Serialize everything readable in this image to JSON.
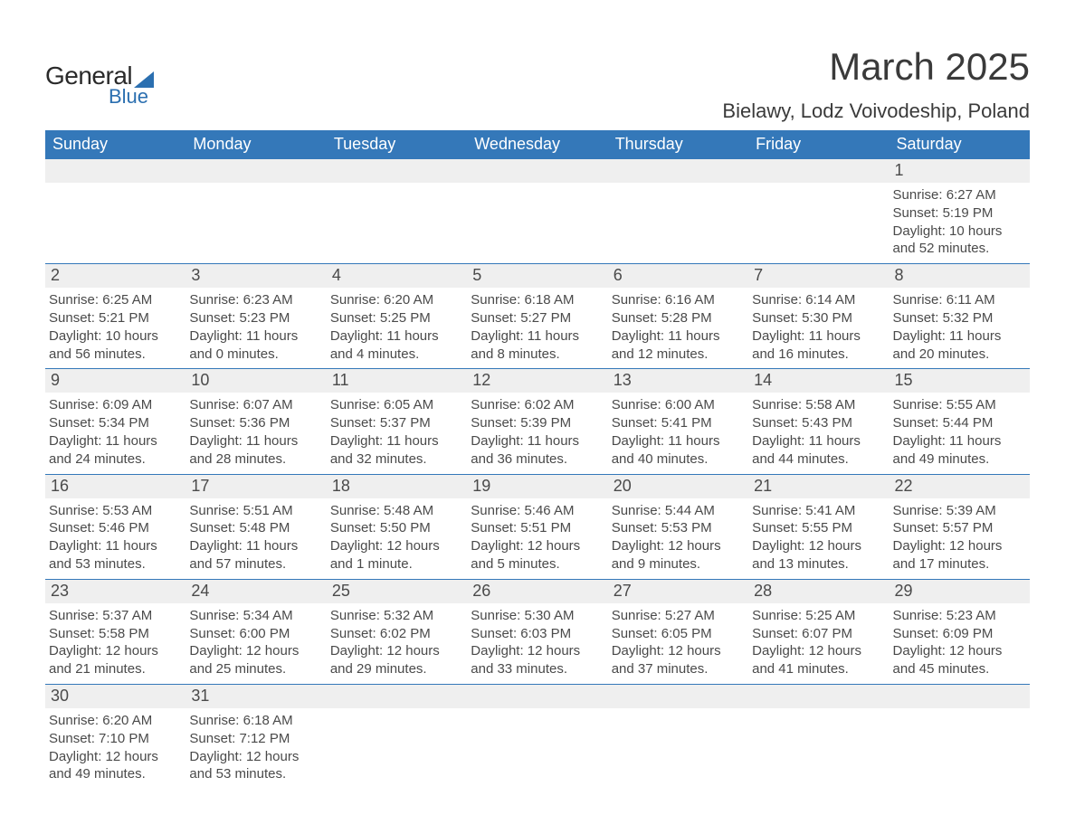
{
  "logo": {
    "part1": "General",
    "part2": "Blue"
  },
  "title": "March 2025",
  "location": "Bielawy, Lodz Voivodeship, Poland",
  "colors": {
    "header_bg": "#3478b9",
    "header_text": "#ffffff",
    "daynum_bg": "#efefef",
    "border": "#3478b9",
    "text": "#4a4a4a",
    "logo_accent": "#2b6fb0"
  },
  "layout": {
    "type": "table",
    "columns": 7,
    "fontsize_title": 42,
    "fontsize_location": 22,
    "fontsize_header": 18,
    "fontsize_daynum": 18,
    "fontsize_body": 15
  },
  "weekdays": [
    "Sunday",
    "Monday",
    "Tuesday",
    "Wednesday",
    "Thursday",
    "Friday",
    "Saturday"
  ],
  "weeks": [
    [
      null,
      null,
      null,
      null,
      null,
      null,
      {
        "d": "1",
        "sr": "Sunrise: 6:27 AM",
        "ss": "Sunset: 5:19 PM",
        "dl1": "Daylight: 10 hours",
        "dl2": "and 52 minutes."
      }
    ],
    [
      {
        "d": "2",
        "sr": "Sunrise: 6:25 AM",
        "ss": "Sunset: 5:21 PM",
        "dl1": "Daylight: 10 hours",
        "dl2": "and 56 minutes."
      },
      {
        "d": "3",
        "sr": "Sunrise: 6:23 AM",
        "ss": "Sunset: 5:23 PM",
        "dl1": "Daylight: 11 hours",
        "dl2": "and 0 minutes."
      },
      {
        "d": "4",
        "sr": "Sunrise: 6:20 AM",
        "ss": "Sunset: 5:25 PM",
        "dl1": "Daylight: 11 hours",
        "dl2": "and 4 minutes."
      },
      {
        "d": "5",
        "sr": "Sunrise: 6:18 AM",
        "ss": "Sunset: 5:27 PM",
        "dl1": "Daylight: 11 hours",
        "dl2": "and 8 minutes."
      },
      {
        "d": "6",
        "sr": "Sunrise: 6:16 AM",
        "ss": "Sunset: 5:28 PM",
        "dl1": "Daylight: 11 hours",
        "dl2": "and 12 minutes."
      },
      {
        "d": "7",
        "sr": "Sunrise: 6:14 AM",
        "ss": "Sunset: 5:30 PM",
        "dl1": "Daylight: 11 hours",
        "dl2": "and 16 minutes."
      },
      {
        "d": "8",
        "sr": "Sunrise: 6:11 AM",
        "ss": "Sunset: 5:32 PM",
        "dl1": "Daylight: 11 hours",
        "dl2": "and 20 minutes."
      }
    ],
    [
      {
        "d": "9",
        "sr": "Sunrise: 6:09 AM",
        "ss": "Sunset: 5:34 PM",
        "dl1": "Daylight: 11 hours",
        "dl2": "and 24 minutes."
      },
      {
        "d": "10",
        "sr": "Sunrise: 6:07 AM",
        "ss": "Sunset: 5:36 PM",
        "dl1": "Daylight: 11 hours",
        "dl2": "and 28 minutes."
      },
      {
        "d": "11",
        "sr": "Sunrise: 6:05 AM",
        "ss": "Sunset: 5:37 PM",
        "dl1": "Daylight: 11 hours",
        "dl2": "and 32 minutes."
      },
      {
        "d": "12",
        "sr": "Sunrise: 6:02 AM",
        "ss": "Sunset: 5:39 PM",
        "dl1": "Daylight: 11 hours",
        "dl2": "and 36 minutes."
      },
      {
        "d": "13",
        "sr": "Sunrise: 6:00 AM",
        "ss": "Sunset: 5:41 PM",
        "dl1": "Daylight: 11 hours",
        "dl2": "and 40 minutes."
      },
      {
        "d": "14",
        "sr": "Sunrise: 5:58 AM",
        "ss": "Sunset: 5:43 PM",
        "dl1": "Daylight: 11 hours",
        "dl2": "and 44 minutes."
      },
      {
        "d": "15",
        "sr": "Sunrise: 5:55 AM",
        "ss": "Sunset: 5:44 PM",
        "dl1": "Daylight: 11 hours",
        "dl2": "and 49 minutes."
      }
    ],
    [
      {
        "d": "16",
        "sr": "Sunrise: 5:53 AM",
        "ss": "Sunset: 5:46 PM",
        "dl1": "Daylight: 11 hours",
        "dl2": "and 53 minutes."
      },
      {
        "d": "17",
        "sr": "Sunrise: 5:51 AM",
        "ss": "Sunset: 5:48 PM",
        "dl1": "Daylight: 11 hours",
        "dl2": "and 57 minutes."
      },
      {
        "d": "18",
        "sr": "Sunrise: 5:48 AM",
        "ss": "Sunset: 5:50 PM",
        "dl1": "Daylight: 12 hours",
        "dl2": "and 1 minute."
      },
      {
        "d": "19",
        "sr": "Sunrise: 5:46 AM",
        "ss": "Sunset: 5:51 PM",
        "dl1": "Daylight: 12 hours",
        "dl2": "and 5 minutes."
      },
      {
        "d": "20",
        "sr": "Sunrise: 5:44 AM",
        "ss": "Sunset: 5:53 PM",
        "dl1": "Daylight: 12 hours",
        "dl2": "and 9 minutes."
      },
      {
        "d": "21",
        "sr": "Sunrise: 5:41 AM",
        "ss": "Sunset: 5:55 PM",
        "dl1": "Daylight: 12 hours",
        "dl2": "and 13 minutes."
      },
      {
        "d": "22",
        "sr": "Sunrise: 5:39 AM",
        "ss": "Sunset: 5:57 PM",
        "dl1": "Daylight: 12 hours",
        "dl2": "and 17 minutes."
      }
    ],
    [
      {
        "d": "23",
        "sr": "Sunrise: 5:37 AM",
        "ss": "Sunset: 5:58 PM",
        "dl1": "Daylight: 12 hours",
        "dl2": "and 21 minutes."
      },
      {
        "d": "24",
        "sr": "Sunrise: 5:34 AM",
        "ss": "Sunset: 6:00 PM",
        "dl1": "Daylight: 12 hours",
        "dl2": "and 25 minutes."
      },
      {
        "d": "25",
        "sr": "Sunrise: 5:32 AM",
        "ss": "Sunset: 6:02 PM",
        "dl1": "Daylight: 12 hours",
        "dl2": "and 29 minutes."
      },
      {
        "d": "26",
        "sr": "Sunrise: 5:30 AM",
        "ss": "Sunset: 6:03 PM",
        "dl1": "Daylight: 12 hours",
        "dl2": "and 33 minutes."
      },
      {
        "d": "27",
        "sr": "Sunrise: 5:27 AM",
        "ss": "Sunset: 6:05 PM",
        "dl1": "Daylight: 12 hours",
        "dl2": "and 37 minutes."
      },
      {
        "d": "28",
        "sr": "Sunrise: 5:25 AM",
        "ss": "Sunset: 6:07 PM",
        "dl1": "Daylight: 12 hours",
        "dl2": "and 41 minutes."
      },
      {
        "d": "29",
        "sr": "Sunrise: 5:23 AM",
        "ss": "Sunset: 6:09 PM",
        "dl1": "Daylight: 12 hours",
        "dl2": "and 45 minutes."
      }
    ],
    [
      {
        "d": "30",
        "sr": "Sunrise: 6:20 AM",
        "ss": "Sunset: 7:10 PM",
        "dl1": "Daylight: 12 hours",
        "dl2": "and 49 minutes."
      },
      {
        "d": "31",
        "sr": "Sunrise: 6:18 AM",
        "ss": "Sunset: 7:12 PM",
        "dl1": "Daylight: 12 hours",
        "dl2": "and 53 minutes."
      },
      null,
      null,
      null,
      null,
      null
    ]
  ]
}
